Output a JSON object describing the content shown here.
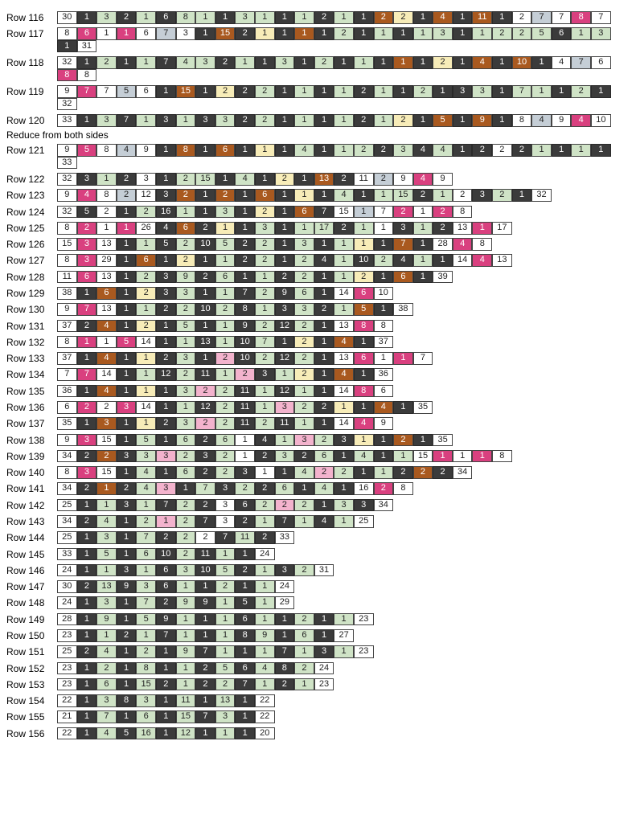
{
  "section_note": "Reduce from both sides",
  "colors": {
    "W": "#ffffff",
    "K": "#3b3b3b",
    "G": "#cfe3c6",
    "P": "#d9407f",
    "T": "#a9591f",
    "Y": "#f7ecb8",
    "B": "#c5ced6",
    "L": "#f3b3cd"
  },
  "rows": [
    {
      "label": "Row 116",
      "cells": [
        "30:W",
        "1:K",
        "3:G",
        "2:K",
        "1:G",
        "6:K",
        "8:G",
        "1:G",
        "1:K",
        "3:G",
        "1:G",
        "1:K",
        "1:G",
        "2:K",
        "1:G",
        "1:K",
        "2:T",
        "2:Y",
        "1:K",
        "4:T",
        "1:K",
        "11:T",
        "1:K",
        "2:W",
        "7:B",
        "7:W",
        "8:P",
        "7:W"
      ]
    },
    {
      "label": "Row 117",
      "cells": [
        "8:W",
        "6:P",
        "1:W",
        "1:P",
        "6:W",
        "7:B",
        "3:W",
        "1:K",
        "15:T",
        "2:K",
        "1:Y",
        "1:K",
        "1:T",
        "1:K",
        "2:G",
        "1:K",
        "1:G",
        "1:K",
        "1:G",
        "3:G",
        "1:K",
        "1:G",
        "2:G",
        "2:G",
        "5:G",
        "6:K",
        "1:G",
        "3:G",
        "1:K",
        "31:W"
      ]
    },
    {
      "label": "Row 118",
      "cells": [
        "32:W",
        "1:K",
        "2:G",
        "1:K",
        "1:G",
        "7:K",
        "4:G",
        "3:G",
        "2:K",
        "1:G",
        "1:K",
        "3:G",
        "1:K",
        "2:G",
        "1:K",
        "1:G",
        "1:K",
        "1:T",
        "1:K",
        "2:Y",
        "1:K",
        "4:T",
        "1:K",
        "10:T",
        "1:K",
        "4:W",
        "7:B",
        "6:W",
        "8:P",
        "8:W"
      ]
    },
    {
      "label": "Row 119",
      "cells": [
        "9:W",
        "7:P",
        "7:W",
        "5:B",
        "6:W",
        "1:K",
        "15:T",
        "1:K",
        "2:Y",
        "2:K",
        "2:G",
        "1:K",
        "1:G",
        "1:K",
        "1:G",
        "2:K",
        "1:G",
        "1:K",
        "2:G",
        "1:K",
        "3:K",
        "3:G",
        "1:K",
        "7:G",
        "1:G",
        "1:K",
        "2:G",
        "1:K",
        "32:W"
      ]
    },
    {
      "label": "Row 120",
      "cells": [
        "33:W",
        "1:K",
        "3:G",
        "7:K",
        "1:G",
        "3:K",
        "1:G",
        "3:K",
        "3:G",
        "2:K",
        "2:G",
        "1:K",
        "1:G",
        "1:K",
        "1:G",
        "2:K",
        "1:G",
        "2:Y",
        "1:K",
        "5:T",
        "1:K",
        "9:T",
        "1:K",
        "8:W",
        "4:B",
        "9:W",
        "4:P",
        "10:W"
      ]
    },
    {
      "label": "Row 121",
      "cells": [
        "9:W",
        "5:P",
        "8:W",
        "4:B",
        "9:W",
        "1:K",
        "8:T",
        "1:K",
        "6:T",
        "1:K",
        "1:Y",
        "1:K",
        "4:G",
        "1:K",
        "1:G",
        "2:G",
        "2:K",
        "3:G",
        "4:K",
        "4:G",
        "1:K",
        "2:K",
        "2:W",
        "2:K",
        "1:G",
        "1:K",
        "1:G",
        "1:K",
        "33:W"
      ]
    },
    {
      "label": "Row 122",
      "cells": [
        "32:W",
        "3:K",
        "1:G",
        "2:K",
        "3:W",
        "1:K",
        "2:G",
        "15:G",
        "1:K",
        "4:G",
        "1:K",
        "2:Y",
        "1:K",
        "13:T",
        "2:K",
        "11:W",
        "2:B",
        "9:W",
        "4:P",
        "9:W"
      ]
    },
    {
      "label": "Row 123",
      "cells": [
        "9:W",
        "4:P",
        "8:W",
        "2:B",
        "12:W",
        "3:K",
        "2:T",
        "1:K",
        "2:T",
        "1:K",
        "6:T",
        "1:K",
        "1:Y",
        "1:K",
        "4:G",
        "1:K",
        "1:G",
        "15:G",
        "2:K",
        "1:G",
        "2:W",
        "3:K",
        "2:G",
        "1:K",
        "32:W"
      ]
    },
    {
      "label": "Row 124",
      "cells": [
        "32:W",
        "5:K",
        "2:W",
        "1:K",
        "2:G",
        "16:K",
        "1:G",
        "1:K",
        "3:G",
        "1:K",
        "2:Y",
        "1:K",
        "6:T",
        "7:K",
        "15:W",
        "1:B",
        "7:W",
        "2:P",
        "1:W",
        "2:P",
        "8:W"
      ]
    },
    {
      "label": "Row 125",
      "cells": [
        "8:W",
        "2:P",
        "1:W",
        "1:P",
        "26:W",
        "4:K",
        "6:T",
        "2:K",
        "1:Y",
        "1:K",
        "3:G",
        "1:K",
        "1:G",
        "17:G",
        "2:K",
        "1:G",
        "1:W",
        "3:K",
        "1:G",
        "2:K",
        "13:W",
        "1:P",
        "17:W"
      ]
    },
    {
      "label": "Row 126",
      "cells": [
        "15:W",
        "3:P",
        "13:W",
        "1:K",
        "1:G",
        "5:K",
        "2:G",
        "10:K",
        "5:G",
        "2:K",
        "2:G",
        "1:K",
        "3:G",
        "1:K",
        "1:G",
        "1:Y",
        "1:K",
        "7:T",
        "1:K",
        "28:W",
        "4:P",
        "8:W"
      ]
    },
    {
      "label": "Row 127",
      "cells": [
        "8:W",
        "3:P",
        "29:W",
        "1:K",
        "6:T",
        "1:K",
        "2:Y",
        "1:K",
        "1:G",
        "2:K",
        "2:G",
        "1:K",
        "2:G",
        "4:K",
        "1:G",
        "10:K",
        "2:G",
        "4:K",
        "1:G",
        "1:K",
        "14:W",
        "4:P",
        "13:W"
      ]
    },
    {
      "label": "Row 128",
      "cells": [
        "11:W",
        "6:P",
        "13:W",
        "1:K",
        "2:G",
        "3:K",
        "9:G",
        "2:K",
        "6:G",
        "1:K",
        "1:G",
        "2:K",
        "2:G",
        "1:K",
        "1:G",
        "2:Y",
        "1:K",
        "6:T",
        "1:K",
        "39:W"
      ]
    },
    {
      "label": "Row 129",
      "cells": [
        "38:W",
        "1:K",
        "6:T",
        "1:K",
        "2:Y",
        "3:K",
        "3:G",
        "1:K",
        "1:G",
        "7:K",
        "2:G",
        "9:K",
        "6:G",
        "1:K",
        "14:W",
        "6:P",
        "10:W"
      ]
    },
    {
      "label": "Row 130",
      "cells": [
        "9:W",
        "7:P",
        "13:W",
        "1:K",
        "1:G",
        "2:K",
        "2:G",
        "10:K",
        "2:G",
        "8:K",
        "1:G",
        "3:K",
        "3:G",
        "2:K",
        "1:G",
        "5:T",
        "1:K",
        "38:W"
      ]
    },
    {
      "label": "Row 131",
      "cells": [
        "37:W",
        "2:K",
        "4:T",
        "1:K",
        "2:Y",
        "1:K",
        "5:G",
        "1:K",
        "1:G",
        "9:K",
        "2:G",
        "12:K",
        "2:G",
        "1:K",
        "13:W",
        "8:P",
        "8:W"
      ]
    },
    {
      "label": "Row 132",
      "cells": [
        "8:W",
        "1:P",
        "1:W",
        "5:P",
        "14:W",
        "1:K",
        "1:G",
        "13:K",
        "1:G",
        "10:K",
        "7:G",
        "1:K",
        "2:Y",
        "1:K",
        "4:T",
        "1:K",
        "37:W"
      ]
    },
    {
      "label": "Row 133",
      "cells": [
        "37:W",
        "1:K",
        "4:T",
        "1:K",
        "1:Y",
        "2:K",
        "3:G",
        "1:K",
        "2:L",
        "10:K",
        "2:G",
        "12:K",
        "2:G",
        "1:K",
        "13:W",
        "6:P",
        "1:W",
        "1:P",
        "7:W"
      ]
    },
    {
      "label": "Row 134",
      "cells": [
        "7:W",
        "7:P",
        "14:W",
        "1:K",
        "1:G",
        "12:K",
        "2:G",
        "11:K",
        "1:G",
        "2:L",
        "3:K",
        "1:G",
        "2:Y",
        "1:K",
        "4:T",
        "1:K",
        "36:W"
      ]
    },
    {
      "label": "Row 135",
      "cells": [
        "36:W",
        "1:K",
        "4:T",
        "1:K",
        "1:Y",
        "1:K",
        "3:G",
        "2:L",
        "2:G",
        "11:K",
        "1:G",
        "12:K",
        "1:G",
        "1:K",
        "14:W",
        "8:P",
        "6:W"
      ]
    },
    {
      "label": "Row 136",
      "cells": [
        "6:W",
        "2:P",
        "2:W",
        "3:P",
        "14:W",
        "1:K",
        "1:G",
        "12:K",
        "2:G",
        "11:K",
        "1:G",
        "3:L",
        "2:G",
        "2:K",
        "1:Y",
        "1:K",
        "4:T",
        "1:K",
        "35:W"
      ]
    },
    {
      "label": "Row 137",
      "cells": [
        "35:W",
        "1:K",
        "3:T",
        "1:K",
        "1:Y",
        "2:K",
        "3:G",
        "2:L",
        "2:G",
        "11:K",
        "2:G",
        "11:K",
        "1:G",
        "1:K",
        "14:W",
        "4:P",
        "9:W"
      ]
    },
    {
      "label": "Row 138",
      "cells": [
        "9:W",
        "3:P",
        "15:W",
        "1:K",
        "5:G",
        "1:K",
        "6:G",
        "2:K",
        "6:G",
        "1:W",
        "4:K",
        "1:G",
        "3:L",
        "2:G",
        "3:K",
        "1:Y",
        "1:K",
        "2:T",
        "1:K",
        "35:W"
      ]
    },
    {
      "label": "Row 139",
      "cells": [
        "34:W",
        "2:K",
        "2:T",
        "3:K",
        "3:G",
        "3:L",
        "2:G",
        "3:K",
        "2:G",
        "1:W",
        "2:K",
        "3:G",
        "2:K",
        "6:G",
        "1:K",
        "4:G",
        "1:K",
        "1:G",
        "15:W",
        "1:P",
        "1:W",
        "1:P",
        "8:W"
      ]
    },
    {
      "label": "Row 140",
      "cells": [
        "8:W",
        "3:P",
        "15:W",
        "1:K",
        "4:G",
        "1:K",
        "6:G",
        "2:K",
        "2:G",
        "3:K",
        "1:W",
        "1:K",
        "4:G",
        "2:L",
        "2:G",
        "1:K",
        "1:G",
        "2:K",
        "2:T",
        "2:K",
        "34:W"
      ]
    },
    {
      "label": "Row 141",
      "cells": [
        "34:W",
        "2:K",
        "1:T",
        "2:K",
        "4:G",
        "3:L",
        "1:K",
        "7:G",
        "3:K",
        "2:G",
        "2:K",
        "6:G",
        "1:K",
        "4:G",
        "1:K",
        "16:W",
        "2:P",
        "8:W"
      ]
    },
    {
      "label": "Row 142",
      "cells": [
        "25:W",
        "1:K",
        "1:G",
        "3:K",
        "1:G",
        "7:K",
        "2:G",
        "2:K",
        "3:W",
        "6:K",
        "2:G",
        "2:L",
        "2:G",
        "1:K",
        "3:G",
        "3:K",
        "34:W"
      ]
    },
    {
      "label": "Row 143",
      "cells": [
        "34:W",
        "2:K",
        "4:G",
        "1:K",
        "2:G",
        "1:L",
        "2:G",
        "7:K",
        "3:W",
        "2:K",
        "1:G",
        "7:K",
        "1:G",
        "4:K",
        "1:G",
        "25:W"
      ]
    },
    {
      "label": "Row 144",
      "cells": [
        "25:W",
        "1:K",
        "3:G",
        "1:K",
        "7:G",
        "2:K",
        "2:G",
        "2:W",
        "7:K",
        "11:G",
        "2:K",
        "33:W"
      ]
    },
    {
      "label": "Row 145",
      "cells": [
        "33:W",
        "1:K",
        "5:G",
        "1:K",
        "6:G",
        "10:K",
        "2:G",
        "11:K",
        "1:G",
        "1:K",
        "24:W"
      ]
    },
    {
      "label": "Row 146",
      "cells": [
        "24:W",
        "1:K",
        "1:G",
        "3:K",
        "1:G",
        "6:K",
        "3:G",
        "10:K",
        "5:G",
        "2:K",
        "1:G",
        "3:K",
        "2:G",
        "31:W"
      ]
    },
    {
      "label": "Row 147",
      "cells": [
        "30:W",
        "2:K",
        "13:G",
        "9:K",
        "3:G",
        "6:K",
        "1:G",
        "1:K",
        "2:G",
        "1:K",
        "1:G",
        "24:W"
      ]
    },
    {
      "label": "Row 148",
      "cells": [
        "24:W",
        "1:K",
        "3:G",
        "1:K",
        "7:G",
        "2:K",
        "9:G",
        "9:K",
        "1:G",
        "5:K",
        "1:G",
        "29:W"
      ]
    },
    {
      "label": "Row 149",
      "cells": [
        "28:W",
        "1:K",
        "9:G",
        "1:K",
        "5:G",
        "9:K",
        "1:G",
        "1:K",
        "1:G",
        "6:K",
        "1:G",
        "1:K",
        "2:G",
        "1:K",
        "1:G",
        "23:W"
      ]
    },
    {
      "label": "Row 150",
      "cells": [
        "23:W",
        "1:K",
        "1:G",
        "2:K",
        "1:G",
        "7:K",
        "1:G",
        "1:K",
        "1:G",
        "8:K",
        "9:G",
        "1:K",
        "6:G",
        "1:K",
        "27:W"
      ]
    },
    {
      "label": "Row 151",
      "cells": [
        "25:W",
        "2:K",
        "4:G",
        "1:K",
        "2:G",
        "1:K",
        "9:G",
        "7:K",
        "1:G",
        "1:K",
        "1:G",
        "7:K",
        "1:G",
        "3:K",
        "1:G",
        "23:W"
      ]
    },
    {
      "label": "Row 152",
      "cells": [
        "23:W",
        "1:K",
        "2:G",
        "1:K",
        "8:G",
        "1:K",
        "1:G",
        "2:K",
        "5:G",
        "6:K",
        "4:G",
        "8:K",
        "2:G",
        "24:W"
      ]
    },
    {
      "label": "Row 153",
      "cells": [
        "23:W",
        "1:K",
        "6:G",
        "1:K",
        "15:G",
        "2:K",
        "1:G",
        "2:K",
        "2:G",
        "7:K",
        "1:G",
        "2:K",
        "1:G",
        "23:W"
      ]
    },
    {
      "label": "Row 154",
      "cells": [
        "22:W",
        "1:K",
        "3:G",
        "8:K",
        "3:G",
        "1:K",
        "11:G",
        "1:K",
        "13:G",
        "1:K",
        "22:W"
      ]
    },
    {
      "label": "Row 155",
      "cells": [
        "21:W",
        "1:K",
        "7:G",
        "1:K",
        "6:G",
        "1:K",
        "15:G",
        "7:K",
        "3:G",
        "1:K",
        "22:W"
      ]
    },
    {
      "label": "Row 156",
      "cells": [
        "22:W",
        "1:K",
        "4:G",
        "5:K",
        "16:G",
        "1:K",
        "12:G",
        "1:K",
        "1:G",
        "1:K",
        "20:W"
      ]
    }
  ]
}
